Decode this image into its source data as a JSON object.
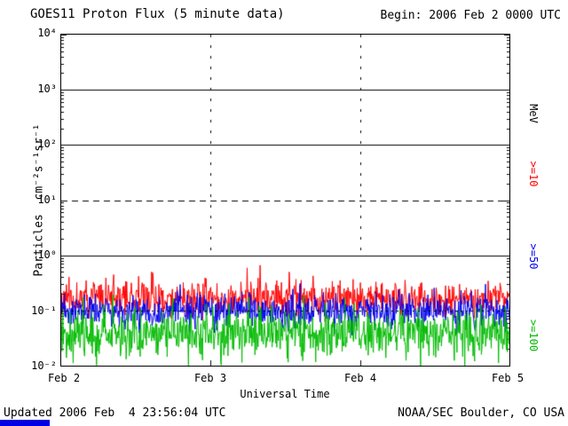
{
  "header": {
    "title": "GOES11 Proton Flux (5 minute data)",
    "begin_label": "Begin: 2006 Feb 2 0000 UTC"
  },
  "axes": {
    "y_label": "Particles  cm⁻²s⁻¹sr⁻¹",
    "x_label": "Universal Time",
    "y_ticks": [
      "10⁴",
      "10³",
      "10²",
      "10¹",
      "10⁰",
      "10⁻¹",
      "10⁻²"
    ],
    "x_ticks": [
      "Feb 2",
      "Feb 3",
      "Feb 4",
      "Feb 5"
    ],
    "right_unit": "MeV"
  },
  "legend": [
    {
      "label": ">=10",
      "color": "#ff0000"
    },
    {
      "label": ">=50",
      "color": "#0000ee"
    },
    {
      "label": ">=100",
      "color": "#00bb00"
    }
  ],
  "footer": {
    "updated": "Updated 2006 Feb  4 23:56:04 UTC",
    "credit": "NOAA/SEC Boulder, CO USA"
  },
  "chart_data": {
    "type": "line",
    "title": "GOES11 Proton Flux (5 minute data)",
    "xlabel": "Universal Time",
    "ylabel": "Particles cm-2 s-1 sr-1",
    "y_scale": "log10",
    "ylim": [
      0.01,
      10000
    ],
    "x_span_days": 3,
    "x_tick_days": [
      "Feb 2",
      "Feb 3",
      "Feb 4",
      "Feb 5"
    ],
    "points": 864,
    "series": [
      {
        "name": ">=10 MeV",
        "color": "#ff0000",
        "typical_flux": 0.17,
        "approx_range": [
          0.08,
          0.65
        ],
        "log10_mean": -0.78,
        "log10_sigma": 0.16,
        "spike_prob": 0.006,
        "spike_amp": 0.5,
        "seed": 11
      },
      {
        "name": ">=50 MeV",
        "color": "#0000ee",
        "typical_flux": 0.095,
        "approx_range": [
          0.04,
          0.22
        ],
        "log10_mean": -1.02,
        "log10_sigma": 0.15,
        "spike_prob": 0,
        "spike_amp": 0,
        "seed": 23
      },
      {
        "name": ">=100 MeV",
        "color": "#00bb00",
        "typical_flux": 0.042,
        "approx_range": [
          0.013,
          0.12
        ],
        "log10_mean": -1.4,
        "log10_sigma": 0.22,
        "spike_prob": 0,
        "spike_amp": 0,
        "seed": 37
      }
    ],
    "gridlines": {
      "solid_y": [
        1000,
        100,
        1
      ],
      "dashed_y": [
        10
      ],
      "dotted_y": [
        0.1
      ],
      "vertical_dashed_x_days": [
        1,
        2
      ]
    },
    "legend_position": "right"
  }
}
